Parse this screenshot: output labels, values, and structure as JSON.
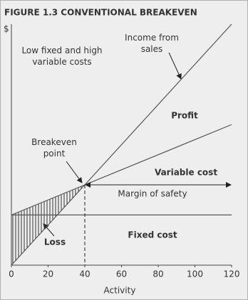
{
  "chart_data": {
    "type": "line",
    "title": "FIGURE 1.3 CONVENTIONAL BREAKEVEN",
    "y_label": "$",
    "x_label": "Activity",
    "x": [
      0,
      40,
      120
    ],
    "xlim": [
      0,
      120
    ],
    "xticks": [
      0,
      20,
      40,
      60,
      80,
      100,
      120
    ],
    "ylim": [
      0,
      120
    ],
    "grid": false,
    "series": [
      {
        "name": "Income from sales",
        "color": "#555555",
        "values": [
          0,
          40,
          120
        ]
      },
      {
        "name": "Variable cost",
        "color": "#555555",
        "values": [
          25,
          40,
          70
        ]
      },
      {
        "name": "Fixed cost",
        "color": "#555555",
        "values": [
          25,
          25,
          25
        ]
      }
    ],
    "annotations": {
      "cost_structure": "Low fixed and high variable costs",
      "breakeven": "Breakeven point",
      "profit": "Profit",
      "loss": "Loss",
      "margin": "Margin of safety"
    }
  }
}
